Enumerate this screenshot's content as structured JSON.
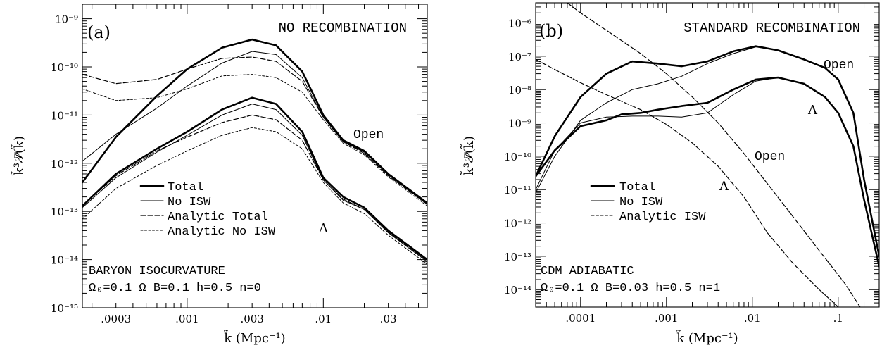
{
  "chart_data": [
    {
      "type": "line",
      "panel_label": "(a)",
      "title": "NO RECOMBINATION",
      "xlabel": "k̃ (Mpc⁻¹)",
      "ylabel": "k̃³𝒫(k̃)",
      "xscale": "log",
      "yscale": "log",
      "xlim": [
        0.00017,
        0.058
      ],
      "ylim": [
        1e-15,
        2e-09
      ],
      "x_tick_labels": [
        ".0003",
        ".001",
        ".003",
        ".01",
        ".03"
      ],
      "y_tick_labels": [
        "10⁻¹⁵",
        "10⁻¹⁴",
        "10⁻¹³",
        "10⁻¹²",
        "10⁻¹¹",
        "10⁻¹⁰",
        "10⁻⁹"
      ],
      "legend": [
        "Total",
        "No ISW",
        "Analytic Total",
        "Analytic No ISW"
      ],
      "legend_position": "lower-left",
      "annotations": [
        "Open",
        "Λ"
      ],
      "bottom_text": [
        "BARYON ISOCURVATURE",
        "Ω₀=0.1  Ω_B=0.1  h=0.5  n=0"
      ],
      "grid": false,
      "series": [
        {
          "name": "Total",
          "group": "Open",
          "style": "thick",
          "x": [
            0.00017,
            0.0003,
            0.0006,
            0.001,
            0.0018,
            0.003,
            0.0045,
            0.007,
            0.01,
            0.014,
            0.02,
            0.03,
            0.058
          ],
          "y": [
            4e-13,
            3.5e-12,
            2.5e-11,
            9e-11,
            2.5e-10,
            3.7e-10,
            2.8e-10,
            8e-11,
            1e-11,
            3e-12,
            1.8e-12,
            6e-13,
            1.5e-13
          ]
        },
        {
          "name": "No ISW",
          "group": "Open",
          "style": "thin",
          "x": [
            0.00017,
            0.0003,
            0.0006,
            0.001,
            0.0018,
            0.003,
            0.0045,
            0.007,
            0.01,
            0.014,
            0.02,
            0.03,
            0.058
          ],
          "y": [
            1.1e-12,
            4e-12,
            1.4e-11,
            4e-11,
            1.2e-10,
            2.1e-10,
            1.8e-10,
            6e-11,
            9e-12,
            2.8e-12,
            1.7e-12,
            5.8e-13,
            1.4e-13
          ]
        },
        {
          "name": "Analytic Total",
          "group": "Open",
          "style": "dashed",
          "x": [
            0.00017,
            0.0003,
            0.0006,
            0.001,
            0.0018,
            0.003,
            0.0045,
            0.007,
            0.01,
            0.014,
            0.02,
            0.03,
            0.058
          ],
          "y": [
            7e-11,
            4.5e-11,
            5.5e-11,
            9e-11,
            1.5e-10,
            1.6e-10,
            1.3e-10,
            5e-11,
            9e-12,
            2.8e-12,
            1.6e-12,
            5.5e-13,
            1.4e-13
          ]
        },
        {
          "name": "Analytic No ISW",
          "group": "Open",
          "style": "dotted",
          "x": [
            0.00017,
            0.0003,
            0.0006,
            0.001,
            0.0018,
            0.003,
            0.0045,
            0.007,
            0.01,
            0.014,
            0.02,
            0.03,
            0.058
          ],
          "y": [
            3.5e-11,
            2e-11,
            2.3e-11,
            3.5e-11,
            6.5e-11,
            7e-11,
            6e-11,
            3e-11,
            8e-12,
            2.6e-12,
            1.5e-12,
            5.2e-13,
            1.3e-13
          ]
        },
        {
          "name": "Total",
          "group": "Λ",
          "style": "thick",
          "x": [
            0.00017,
            0.0003,
            0.0006,
            0.001,
            0.0018,
            0.003,
            0.0045,
            0.007,
            0.01,
            0.014,
            0.02,
            0.03,
            0.058
          ],
          "y": [
            1.3e-13,
            6e-13,
            2e-12,
            4.5e-12,
            1.3e-11,
            2.3e-11,
            1.7e-11,
            4.5e-12,
            5e-13,
            2e-13,
            1.2e-13,
            4e-14,
            1e-14
          ]
        },
        {
          "name": "No ISW",
          "group": "Λ",
          "style": "thin",
          "x": [
            0.00017,
            0.0003,
            0.0006,
            0.001,
            0.0018,
            0.003,
            0.0045,
            0.007,
            0.01,
            0.014,
            0.02,
            0.03,
            0.058
          ],
          "y": [
            1.2e-13,
            5e-13,
            1.7e-12,
            3.8e-12,
            1e-11,
            1.7e-11,
            1.3e-11,
            3.8e-12,
            4.5e-13,
            1.7e-13,
            1.1e-13,
            3.6e-14,
            9e-15
          ]
        },
        {
          "name": "Analytic Total",
          "group": "Λ",
          "style": "dashed",
          "x": [
            0.00017,
            0.0003,
            0.0006,
            0.001,
            0.0018,
            0.003,
            0.0045,
            0.007,
            0.01,
            0.014,
            0.02,
            0.03,
            0.058
          ],
          "y": [
            1.3e-13,
            5.5e-13,
            1.8e-12,
            3.5e-12,
            7e-12,
            1e-11,
            8e-12,
            3e-12,
            4.5e-13,
            1.8e-13,
            1.1e-13,
            3.7e-14,
            9.5e-15
          ]
        },
        {
          "name": "Analytic No ISW",
          "group": "Λ",
          "style": "dotted",
          "x": [
            0.00017,
            0.0003,
            0.0006,
            0.001,
            0.0018,
            0.003,
            0.0045,
            0.007,
            0.01,
            0.014,
            0.02,
            0.03,
            0.058
          ],
          "y": [
            7e-14,
            3e-13,
            9e-13,
            1.8e-12,
            3.8e-12,
            5.5e-12,
            4.5e-12,
            2e-12,
            4e-13,
            1.5e-13,
            9e-14,
            3.2e-14,
            8e-15
          ]
        }
      ]
    },
    {
      "type": "line",
      "panel_label": "(b)",
      "title": "STANDARD RECOMBINATION",
      "xlabel": "k̃ (Mpc⁻¹)",
      "ylabel": "k̃³𝒫(k̃)",
      "xscale": "log",
      "yscale": "log",
      "xlim": [
        3e-05,
        0.3
      ],
      "ylim": [
        3e-15,
        4e-06
      ],
      "x_tick_labels": [
        ".0001",
        ".001",
        ".01",
        ".1"
      ],
      "y_tick_labels": [
        "10⁻¹⁴",
        "10⁻¹³",
        "10⁻¹²",
        "10⁻¹¹",
        "10⁻¹⁰",
        "10⁻⁹",
        "10⁻⁸",
        "10⁻⁷",
        "10⁻⁶"
      ],
      "legend": [
        "Total",
        "No ISW",
        "Analytic ISW"
      ],
      "legend_position": "lower-left",
      "annotations": [
        "Open",
        "Λ",
        "Open",
        "Λ"
      ],
      "bottom_text": [
        "CDM ADIABATIC",
        "Ω₀=0.1  Ω_B=0.03  h=0.5  n=1"
      ],
      "grid": false,
      "series": [
        {
          "name": "Total",
          "group": "Open",
          "style": "thick",
          "x": [
            3e-05,
            5e-05,
            0.0001,
            0.0002,
            0.0004,
            0.0008,
            0.0015,
            0.003,
            0.006,
            0.011,
            0.02,
            0.04,
            0.07,
            0.1,
            0.15,
            0.2,
            0.3
          ],
          "y": [
            2.5e-11,
            4e-10,
            6e-09,
            3e-08,
            7e-08,
            6e-08,
            5e-08,
            7e-08,
            1.4e-07,
            2e-07,
            1.5e-07,
            8e-08,
            4.5e-08,
            2e-08,
            2e-09,
            2e-11,
            1e-13
          ]
        },
        {
          "name": "Total",
          "group": "Λ",
          "style": "thick",
          "x": [
            3e-05,
            5e-05,
            0.0001,
            0.0002,
            0.0003,
            0.0005,
            0.0008,
            0.0015,
            0.003,
            0.006,
            0.011,
            0.02,
            0.04,
            0.07,
            0.1,
            0.15,
            0.2,
            0.3
          ],
          "y": [
            2.5e-11,
            1.5e-10,
            8e-10,
            1.2e-09,
            1.8e-09,
            2e-09,
            2.5e-09,
            3.2e-09,
            4e-09,
            1e-08,
            2e-08,
            2.3e-08,
            1.5e-08,
            6e-09,
            2e-09,
            2e-10,
            5e-12,
            5e-14
          ]
        },
        {
          "name": "No ISW",
          "group": "Open",
          "style": "thin",
          "x": [
            3e-05,
            5e-05,
            0.0001,
            0.0002,
            0.0004,
            0.0008,
            0.0015,
            0.003,
            0.006,
            0.011,
            0.02,
            0.04,
            0.07,
            0.1,
            0.15,
            0.2,
            0.3
          ],
          "y": [
            8e-12,
            1e-10,
            1.2e-09,
            4e-09,
            1e-08,
            1.5e-08,
            2.5e-08,
            6e-08,
            1.2e-07,
            1.9e-07,
            1.5e-07,
            8e-08,
            4.5e-08,
            2e-08,
            2e-09,
            2e-11,
            1e-13
          ]
        },
        {
          "name": "No ISW",
          "group": "Λ",
          "style": "thin",
          "x": [
            3e-05,
            5e-05,
            0.0001,
            0.0002,
            0.0004,
            0.0008,
            0.0015,
            0.003,
            0.006,
            0.011,
            0.02,
            0.04,
            0.07,
            0.1,
            0.15,
            0.2,
            0.3
          ],
          "y": [
            1e-11,
            1.5e-10,
            1e-09,
            1.5e-09,
            1.6e-09,
            1.6e-09,
            1.5e-09,
            2e-09,
            7e-09,
            1.8e-08,
            2.3e-08,
            1.5e-08,
            6e-09,
            2e-09,
            2e-10,
            5e-12,
            5e-14
          ]
        },
        {
          "name": "Analytic ISW",
          "group": "Open",
          "style": "dashed",
          "x": [
            3e-05,
            5e-05,
            0.0001,
            0.0002,
            0.0005,
            0.001,
            0.002,
            0.004,
            0.008,
            0.015,
            0.03,
            0.06,
            0.1
          ],
          "y": [
            8e-08,
            4e-08,
            1.6e-08,
            7e-09,
            2.5e-09,
            9e-10,
            2.5e-10,
            5e-11,
            6e-12,
            5e-13,
            6e-14,
            1e-14,
            3e-15
          ]
        },
        {
          "name": "Analytic ISW",
          "group": "Λ",
          "style": "dashed",
          "x": [
            7e-05,
            0.0001,
            0.0002,
            0.0005,
            0.001,
            0.002,
            0.004,
            0.008,
            0.015,
            0.03,
            0.06,
            0.12,
            0.18
          ],
          "y": [
            4e-06,
            2e-06,
            6e-07,
            1.2e-07,
            3e-08,
            6e-09,
            1e-09,
            1.2e-10,
            1.5e-11,
            1.5e-12,
            1.5e-13,
            1.5e-14,
            3e-15
          ]
        }
      ]
    }
  ]
}
